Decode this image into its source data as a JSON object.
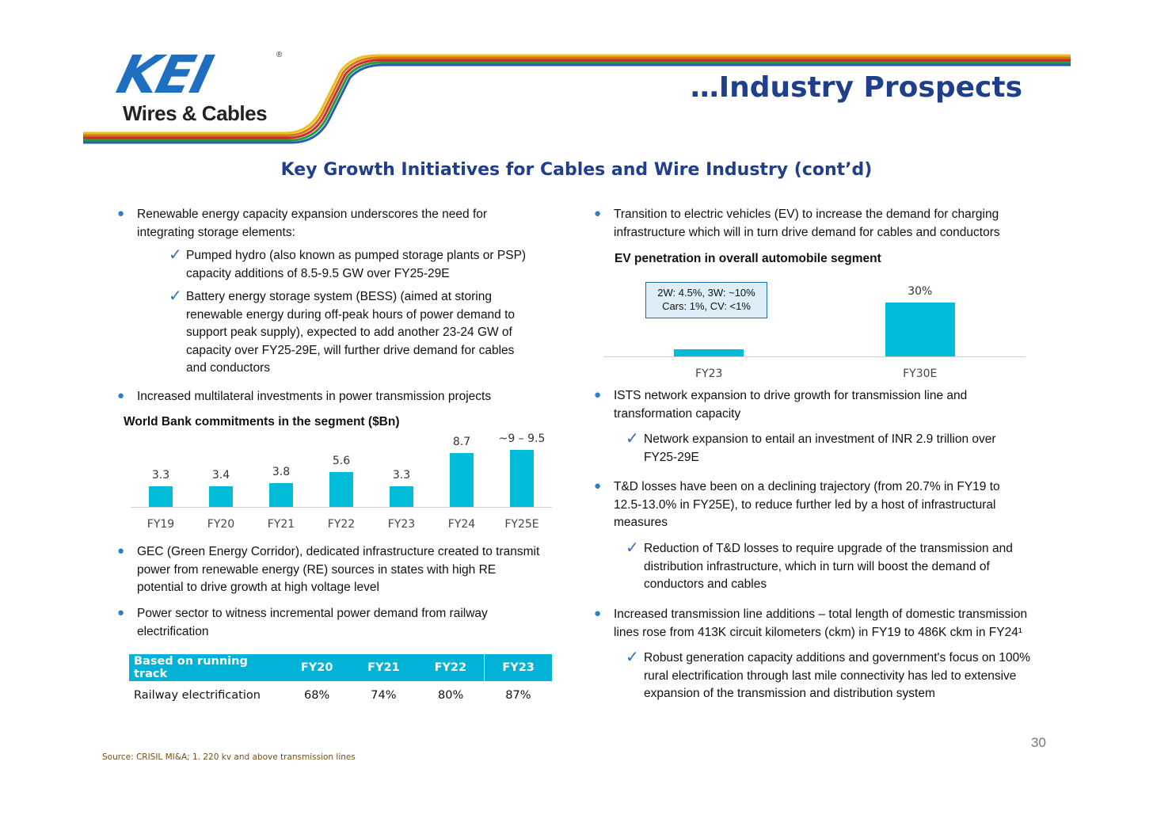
{
  "logo": {
    "brand": "KEI",
    "reg": "®",
    "tagline": "Wires & Cables"
  },
  "page_title": "…Industry Prospects",
  "subtitle": "Key Growth Initiatives for Cables and Wire Industry (cont’d)",
  "left": {
    "b1": {
      "line1": "Renewable energy capacity expansion underscores the need for",
      "line2": "integrating storage elements:"
    },
    "c1": {
      "line1": "Pumped hydro (also known as pumped storage plants or PSP)",
      "line2": "capacity additions of 8.5-9.5 GW over FY25-29E"
    },
    "c2": {
      "line1": "Battery energy storage system (BESS) (aimed at storing",
      "line2": "renewable energy during off-peak hours of power demand to",
      "line3": "support peak supply), expected to add another 23-24 GW of",
      "line4": "capacity over FY25-29E, will further drive demand for cables",
      "line5": "and conductors"
    },
    "b2": "Increased multilateral investments in power transmission projects",
    "b3": {
      "line1": "GEC (Green Energy Corridor), dedicated infrastructure created to transmit",
      "line2": "power from renewable energy (RE) sources in states with high RE",
      "line3": "potential to drive growth at high voltage level"
    },
    "b4": {
      "line1": "Power sector to witness incremental power demand from railway",
      "line2": "electrification"
    },
    "table": {
      "headers": [
        "Based on running track",
        "FY20",
        "FY21",
        "FY22",
        "FY23"
      ],
      "rows": [
        [
          "Railway electrification",
          "68%",
          "74%",
          "80%",
          "87%"
        ]
      ]
    }
  },
  "right": {
    "b1": {
      "line1": "Transition to electric vehicles (EV) to increase the demand for charging",
      "line2": "infrastructure which will in turn drive demand for cables and conductors"
    },
    "callout": {
      "line1": "2W: 4.5%, 3W: ~10%",
      "line2": "Cars: 1%, CV: <1%"
    },
    "b2": {
      "line1": "ISTS network expansion to drive growth for transmission line and",
      "line2": "transformation capacity"
    },
    "c1": {
      "line1": "Network expansion to entail an investment of INR 2.9 trillion over",
      "line2": "FY25-29E"
    },
    "b3": {
      "line1": "T&D losses have been on a declining trajectory (from 20.7% in FY19 to",
      "line2": "12.5-13.0% in FY25E), to reduce further led by a host of infrastructural",
      "line3": "measures"
    },
    "c2": {
      "line1": "Reduction of T&D losses to require upgrade of the transmission and",
      "line2": "distribution infrastructure, which in turn will boost the demand of",
      "line3": "conductors and cables"
    },
    "b4": {
      "line1": "Increased transmission line additions – total length of domestic transmission",
      "line2": "lines rose from 413K circuit kilometers (ckm) in FY19 to 486K ckm in FY24¹"
    },
    "c3": {
      "line1": "Robust generation capacity additions and government's focus on 100%",
      "line2": "rural electrification through last mile connectivity has led to extensive",
      "line3": "expansion of the transmission and distribution system"
    }
  },
  "chart_data": [
    {
      "type": "bar",
      "title": "World Bank commitments in the segment ($Bn)",
      "categories": [
        "FY19",
        "FY20",
        "FY21",
        "FY22",
        "FY23",
        "FY24",
        "FY25E"
      ],
      "values": [
        3.3,
        3.4,
        3.8,
        5.6,
        3.3,
        8.7,
        9.25
      ],
      "data_labels": [
        "3.3",
        "3.4",
        "3.8",
        "5.6",
        "3.3",
        "8.7",
        "~9 – 9.5"
      ],
      "color": "#00bcd8"
    },
    {
      "type": "bar",
      "title": "EV penetration in overall automobile segment",
      "categories": [
        "FY23",
        "FY30E"
      ],
      "values": [
        4,
        30
      ],
      "data_labels": [
        "",
        "30%"
      ],
      "color": "#00bcd8"
    }
  ],
  "page_number": "30",
  "source": "Source: CRISIL MI&A; 1. 220 kv and above transmission lines"
}
